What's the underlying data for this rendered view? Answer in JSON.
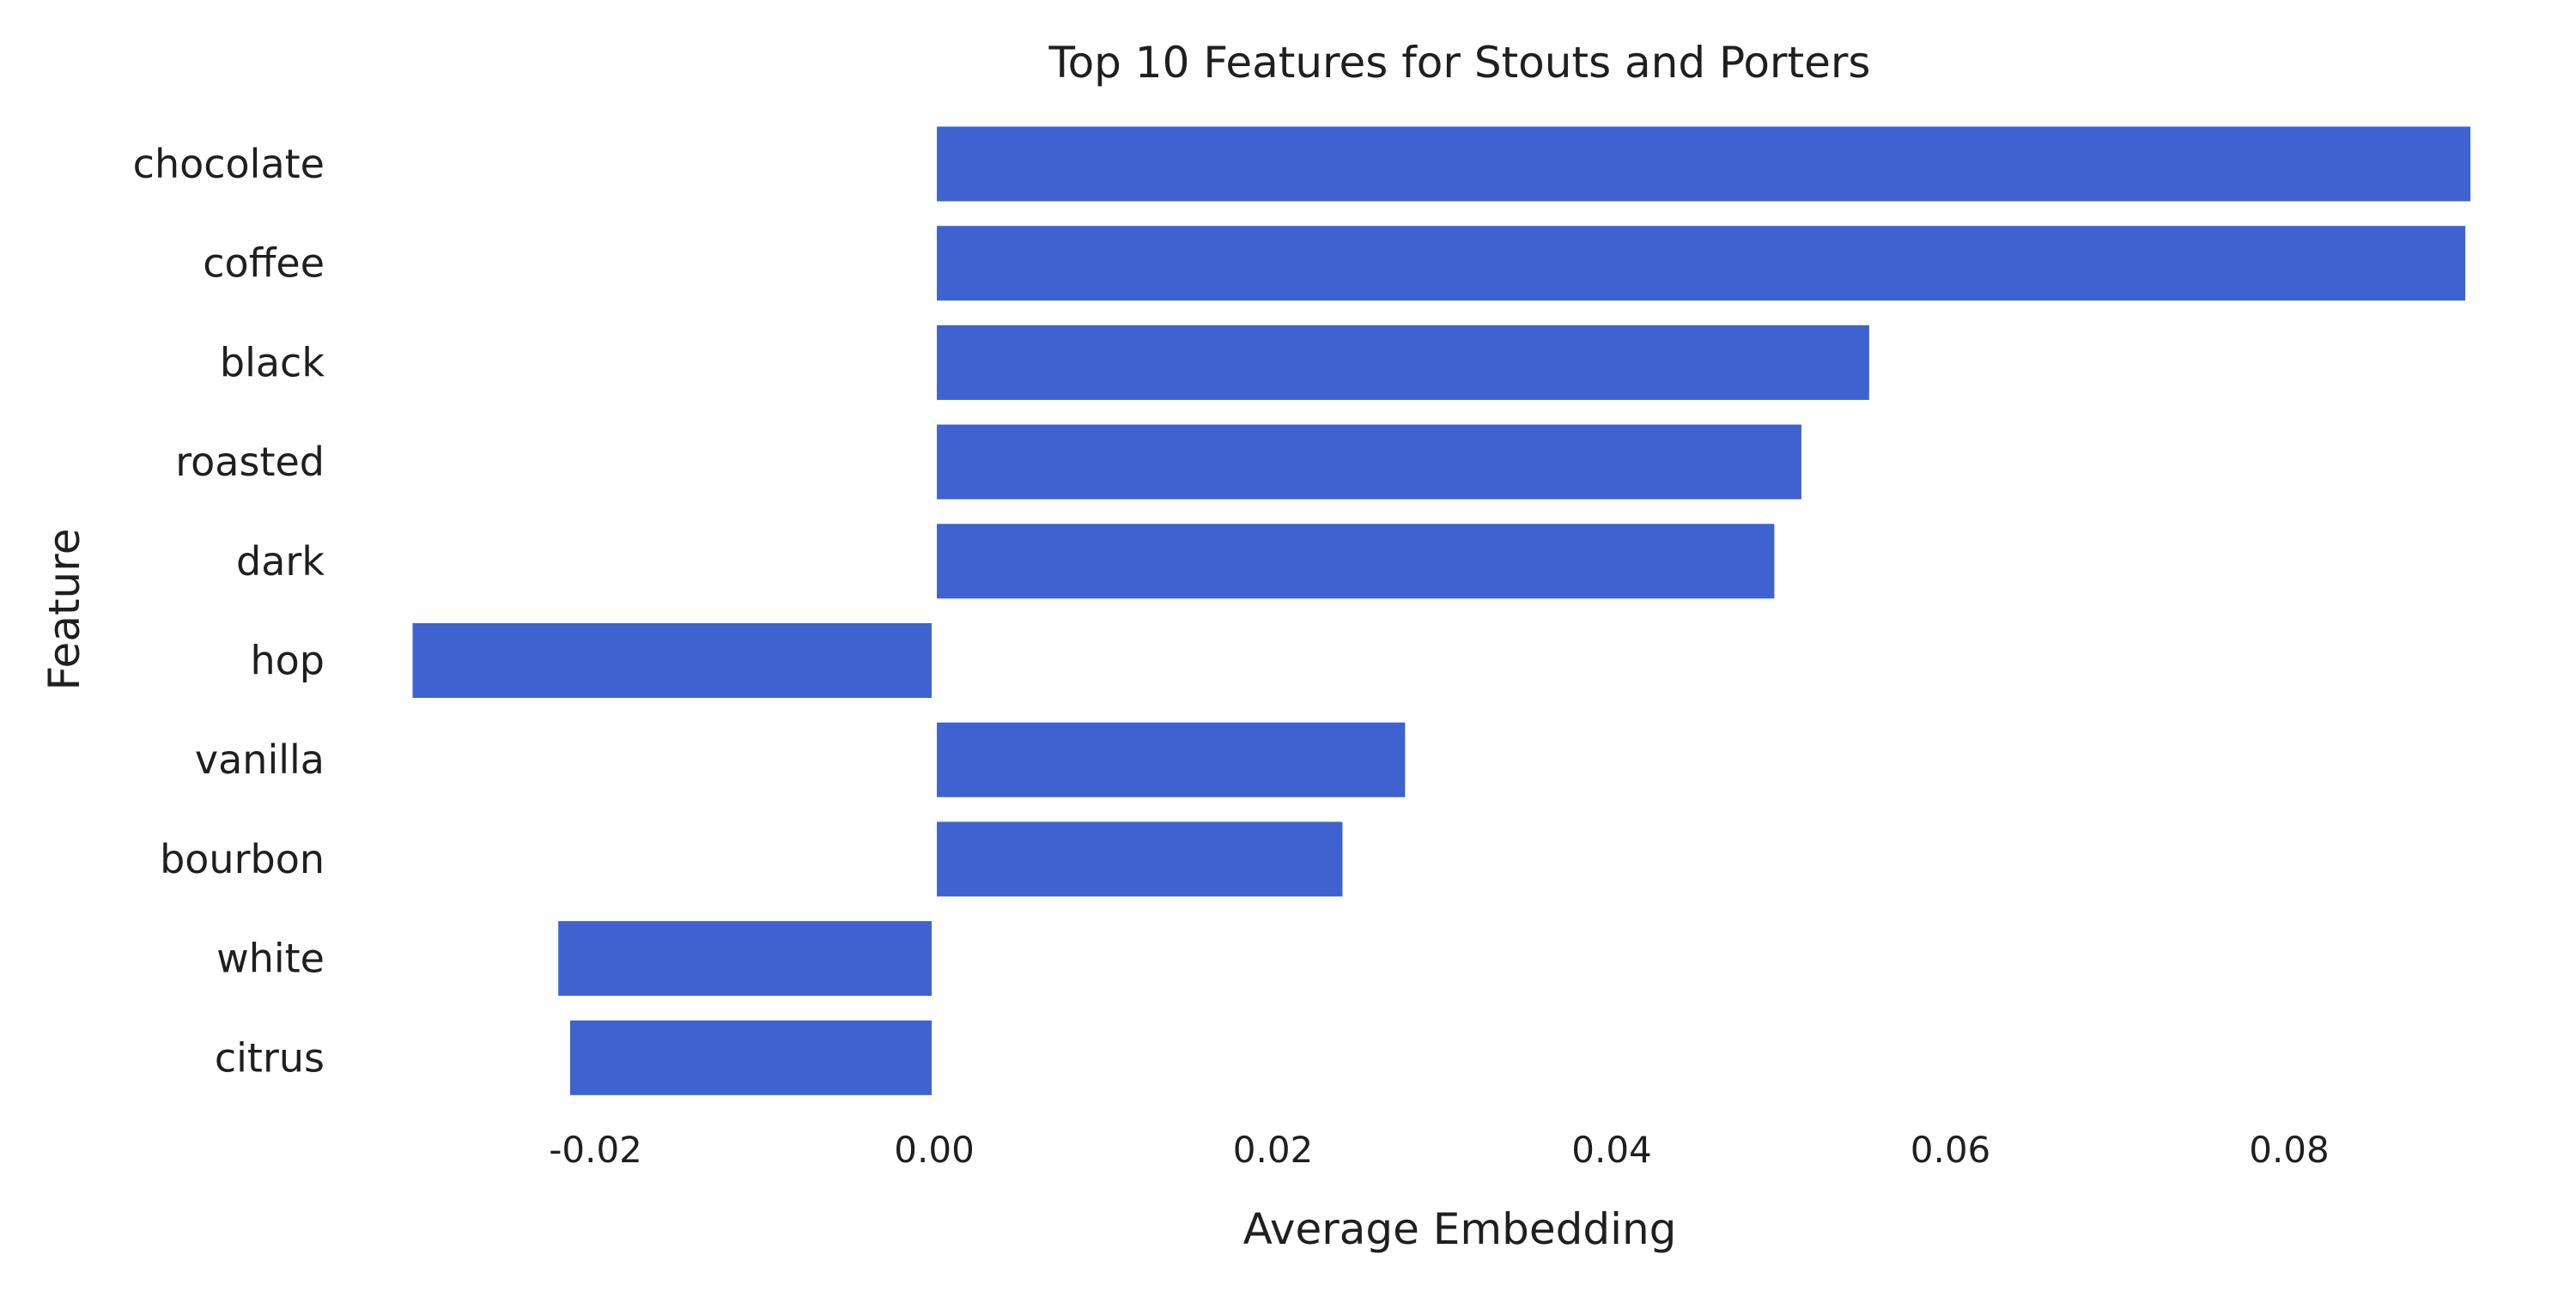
{
  "chart_data": {
    "type": "bar",
    "orientation": "horizontal",
    "title": "Top 10 Features for Stouts and Porters",
    "xlabel": "Average Embedding",
    "ylabel": "Feature",
    "categories": [
      "chocolate",
      "coffee",
      "black",
      "roasted",
      "dark",
      "hop",
      "vanilla",
      "bourbon",
      "white",
      "citrus"
    ],
    "values": [
      0.0907,
      0.0904,
      0.0552,
      0.0512,
      0.0496,
      -0.0308,
      0.0278,
      0.0241,
      -0.0222,
      -0.0215
    ],
    "xlim": [
      -0.0325,
      0.0945
    ],
    "xticks": [
      -0.02,
      0.0,
      0.02,
      0.04,
      0.06,
      0.08
    ],
    "xtick_labels": [
      "-0.02",
      "0.00",
      "0.02",
      "0.04",
      "0.06",
      "0.08"
    ],
    "bar_color": "#3e63d1",
    "grid": false,
    "legend": "none"
  }
}
